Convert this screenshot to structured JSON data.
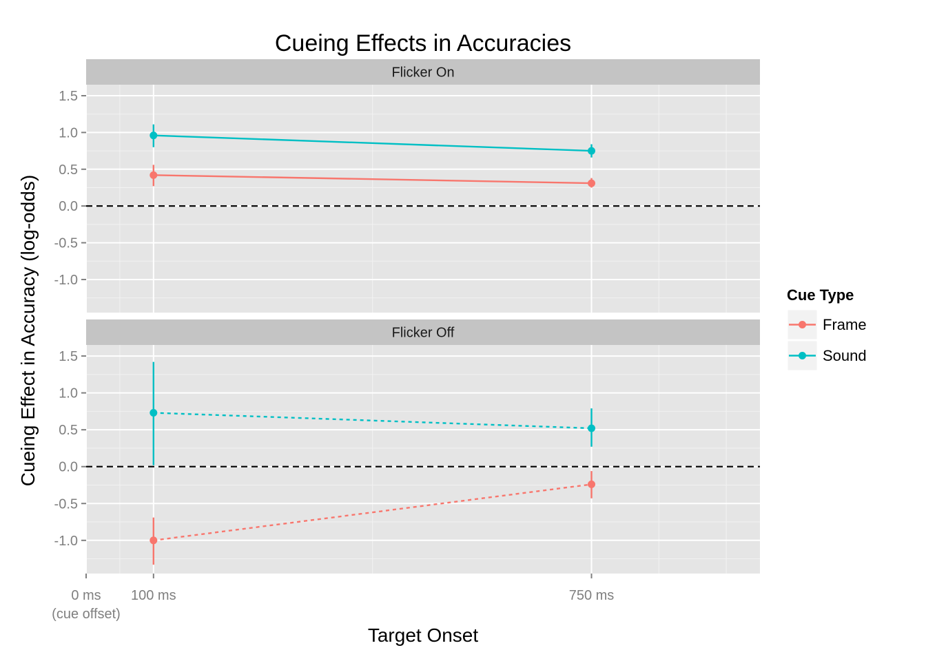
{
  "chart_data": {
    "type": "line",
    "title": "Cueing Effects in Accuracies",
    "xlabel": "Target Onset",
    "ylabel": "Cueing Effect in Accuracy (log-odds)",
    "x_ticks": [
      {
        "value": 0,
        "label": "0 ms",
        "sublabel": "(cue offset)"
      },
      {
        "value": 100,
        "label": "100 ms"
      },
      {
        "value": 750,
        "label": "750 ms"
      }
    ],
    "xlim": [
      0,
      1000
    ],
    "y_ticks": [
      -1.0,
      -0.5,
      0.0,
      0.5,
      1.0,
      1.5
    ],
    "y_tick_labels": [
      "-1.0",
      "-0.5",
      "0.0",
      "0.5",
      "1.0",
      "1.5"
    ],
    "ylim": [
      -1.45,
      1.65
    ],
    "reference_line": {
      "y": 0,
      "style": "dashed",
      "color": "#000000"
    },
    "legend": {
      "title": "Cue Type",
      "placement": "right",
      "entries": [
        "Frame",
        "Sound"
      ]
    },
    "grid": true,
    "panels": [
      {
        "strip": "Flicker On",
        "line_style": "solid",
        "series": [
          {
            "name": "Frame",
            "color": "#F8766D",
            "x": [
              100,
              750
            ],
            "y": [
              0.42,
              0.31
            ],
            "ymin": [
              0.27,
              0.25
            ],
            "ymax": [
              0.56,
              0.38
            ]
          },
          {
            "name": "Sound",
            "color": "#00BFC4",
            "x": [
              100,
              750
            ],
            "y": [
              0.96,
              0.75
            ],
            "ymin": [
              0.8,
              0.66
            ],
            "ymax": [
              1.11,
              0.84
            ]
          }
        ]
      },
      {
        "strip": "Flicker Off",
        "line_style": "dotted",
        "series": [
          {
            "name": "Frame",
            "color": "#F8766D",
            "x": [
              100,
              750
            ],
            "y": [
              -1.0,
              -0.24
            ],
            "ymin": [
              -1.33,
              -0.43
            ],
            "ymax": [
              -0.69,
              -0.06
            ]
          },
          {
            "name": "Sound",
            "color": "#00BFC4",
            "x": [
              100,
              750
            ],
            "y": [
              0.73,
              0.52
            ],
            "ymin": [
              0.02,
              0.27
            ],
            "ymax": [
              1.42,
              0.79
            ]
          }
        ]
      }
    ]
  }
}
